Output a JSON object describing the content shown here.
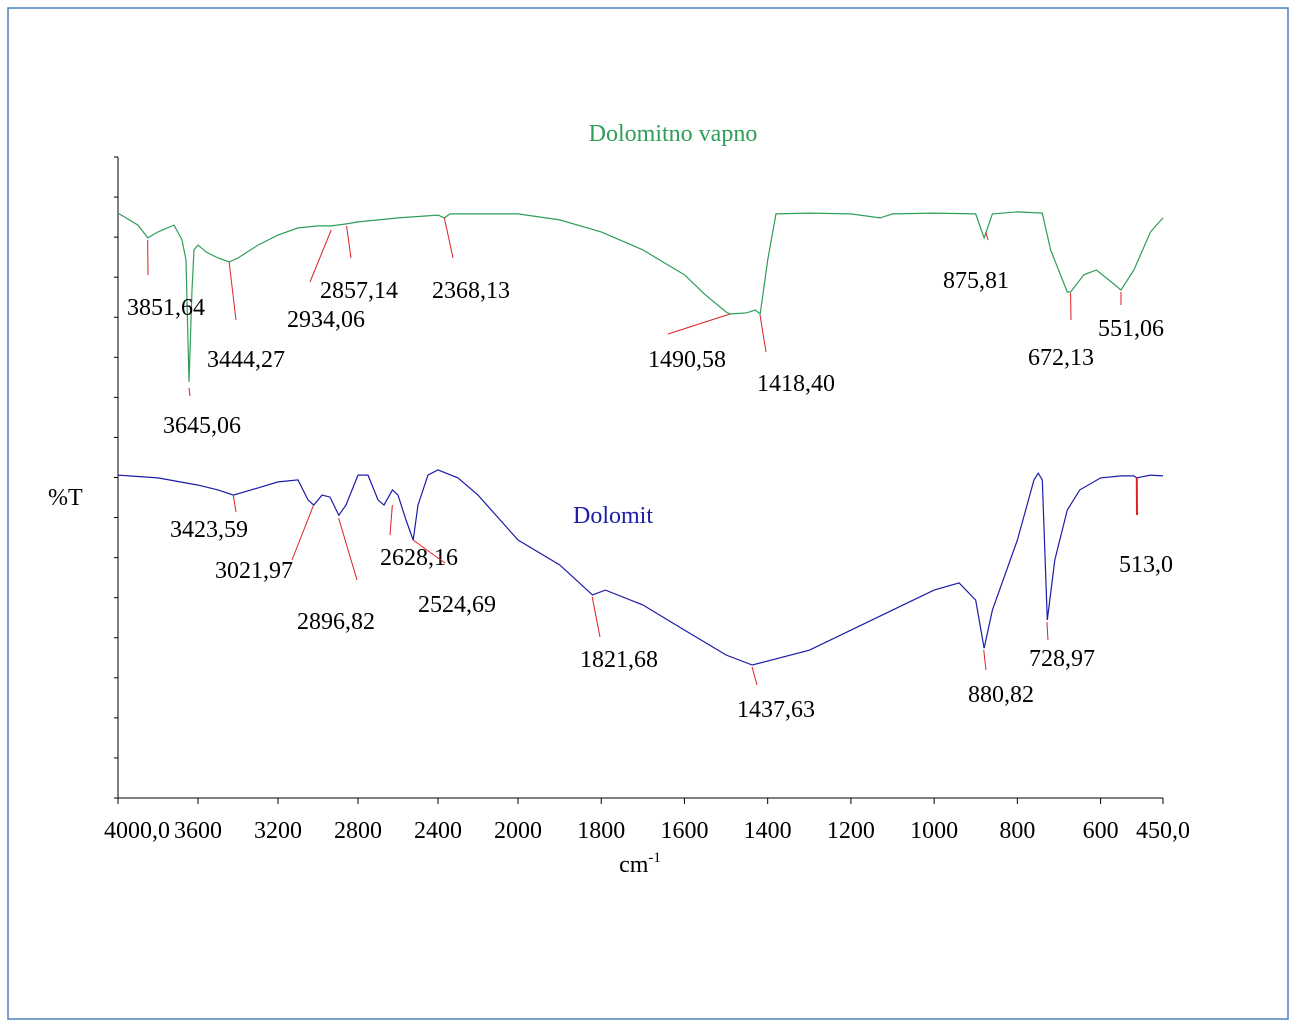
{
  "chart_data": {
    "type": "line",
    "y_label": "%T",
    "x_label": {
      "base": "cm",
      "sup": "-1"
    },
    "xlim": [
      4000,
      450
    ],
    "x_axis_break": 2000,
    "xticks": [
      {
        "value": 4000,
        "label": "4000,0"
      },
      3600,
      3200,
      2800,
      2400,
      2000,
      1800,
      1600,
      1400,
      1200,
      1000,
      800,
      600,
      {
        "value": 450,
        "label": "450,0"
      }
    ],
    "ylim": [
      0,
      16
    ],
    "yticks": [
      0,
      1,
      2,
      3,
      4,
      5,
      6,
      7,
      8,
      9,
      10,
      11,
      12,
      13,
      14,
      15,
      16
    ],
    "peak_marker_color": "#e02020",
    "series": [
      {
        "name": "Dolomitno vapno",
        "color": "#2e9e58",
        "x": [
          4000,
          3900,
          3851,
          3800,
          3720,
          3680,
          3660,
          3645,
          3630,
          3620,
          3600,
          3560,
          3500,
          3444,
          3400,
          3300,
          3200,
          3100,
          3000,
          2934,
          2857,
          2800,
          2600,
          2400,
          2368,
          2340,
          2200,
          2000,
          1900,
          1800,
          1700,
          1600,
          1550,
          1500,
          1490,
          1450,
          1430,
          1418,
          1400,
          1380,
          1300,
          1200,
          1130,
          1100,
          1000,
          900,
          880,
          860,
          800,
          740,
          720,
          680,
          672,
          640,
          610,
          580,
          551,
          520,
          480,
          450
        ],
        "values": [
          14.6,
          14.3,
          13.98,
          14.13,
          14.3,
          13.93,
          13.43,
          10.39,
          12.68,
          13.68,
          13.8,
          13.63,
          13.48,
          13.38,
          13.48,
          13.8,
          14.05,
          14.23,
          14.28,
          14.28,
          14.33,
          14.38,
          14.48,
          14.55,
          14.48,
          14.58,
          14.58,
          14.58,
          14.43,
          14.13,
          13.68,
          13.06,
          12.56,
          12.13,
          12.08,
          12.11,
          12.18,
          12.08,
          13.43,
          14.58,
          14.6,
          14.58,
          14.48,
          14.58,
          14.6,
          14.58,
          13.98,
          14.58,
          14.63,
          14.6,
          13.68,
          12.63,
          12.63,
          13.06,
          13.18,
          12.93,
          12.68,
          13.18,
          14.13,
          14.48
        ],
        "peaks": [
          {
            "label": "3851,64",
            "x": 3851.64
          },
          {
            "label": "3645,06",
            "x": 3645.06
          },
          {
            "label": "3444,27",
            "x": 3444.27
          },
          {
            "label": "2934,06",
            "x": 2934.06
          },
          {
            "label": "2857,14",
            "x": 2857.14
          },
          {
            "label": "2368,13",
            "x": 2368.13
          },
          {
            "label": "1490,58",
            "x": 1490.58
          },
          {
            "label": "1418,40",
            "x": 1418.4
          },
          {
            "label": "875,81",
            "x": 875.81
          },
          {
            "label": "672,13",
            "x": 672.13
          },
          {
            "label": "551,06",
            "x": 551.06
          }
        ]
      },
      {
        "name": "Dolomit",
        "color": "#1c1ca8",
        "x": [
          4000,
          3800,
          3600,
          3500,
          3423,
          3300,
          3200,
          3100,
          3050,
          3021,
          2980,
          2940,
          2896,
          2860,
          2800,
          2750,
          2700,
          2670,
          2628,
          2600,
          2560,
          2524,
          2500,
          2450,
          2400,
          2300,
          2200,
          2000,
          1900,
          1821,
          1790,
          1700,
          1600,
          1500,
          1437,
          1300,
          1100,
          1000,
          940,
          900,
          880,
          860,
          800,
          760,
          750,
          740,
          728,
          710,
          680,
          650,
          600,
          550,
          520,
          513,
          480,
          450
        ],
        "values": [
          8.06,
          7.99,
          7.81,
          7.69,
          7.56,
          7.74,
          7.89,
          7.94,
          7.44,
          7.31,
          7.56,
          7.51,
          7.06,
          7.31,
          8.06,
          8.06,
          7.44,
          7.31,
          7.69,
          7.56,
          6.94,
          6.44,
          7.31,
          8.06,
          8.19,
          7.99,
          7.56,
          6.44,
          5.82,
          5.07,
          5.19,
          4.82,
          4.19,
          3.57,
          3.32,
          3.69,
          4.69,
          5.19,
          5.37,
          4.94,
          3.74,
          4.69,
          6.44,
          7.94,
          8.11,
          7.94,
          4.44,
          5.94,
          7.19,
          7.69,
          7.99,
          8.04,
          8.04,
          7.99,
          8.06,
          8.04
        ],
        "peaks": [
          {
            "label": "3423,59",
            "x": 3423.59
          },
          {
            "label": "3021,97",
            "x": 3021.97
          },
          {
            "label": "2896,82",
            "x": 2896.82
          },
          {
            "label": "2628,16",
            "x": 2628.16
          },
          {
            "label": "2524,69",
            "x": 2524.69
          },
          {
            "label": "1821,68",
            "x": 1821.68
          },
          {
            "label": "1437,63",
            "x": 1437.63
          },
          {
            "label": "880,82",
            "x": 880.82
          },
          {
            "label": "728,97",
            "x": 728.97
          },
          {
            "label": "513,0",
            "x": 513.0
          }
        ]
      }
    ]
  }
}
